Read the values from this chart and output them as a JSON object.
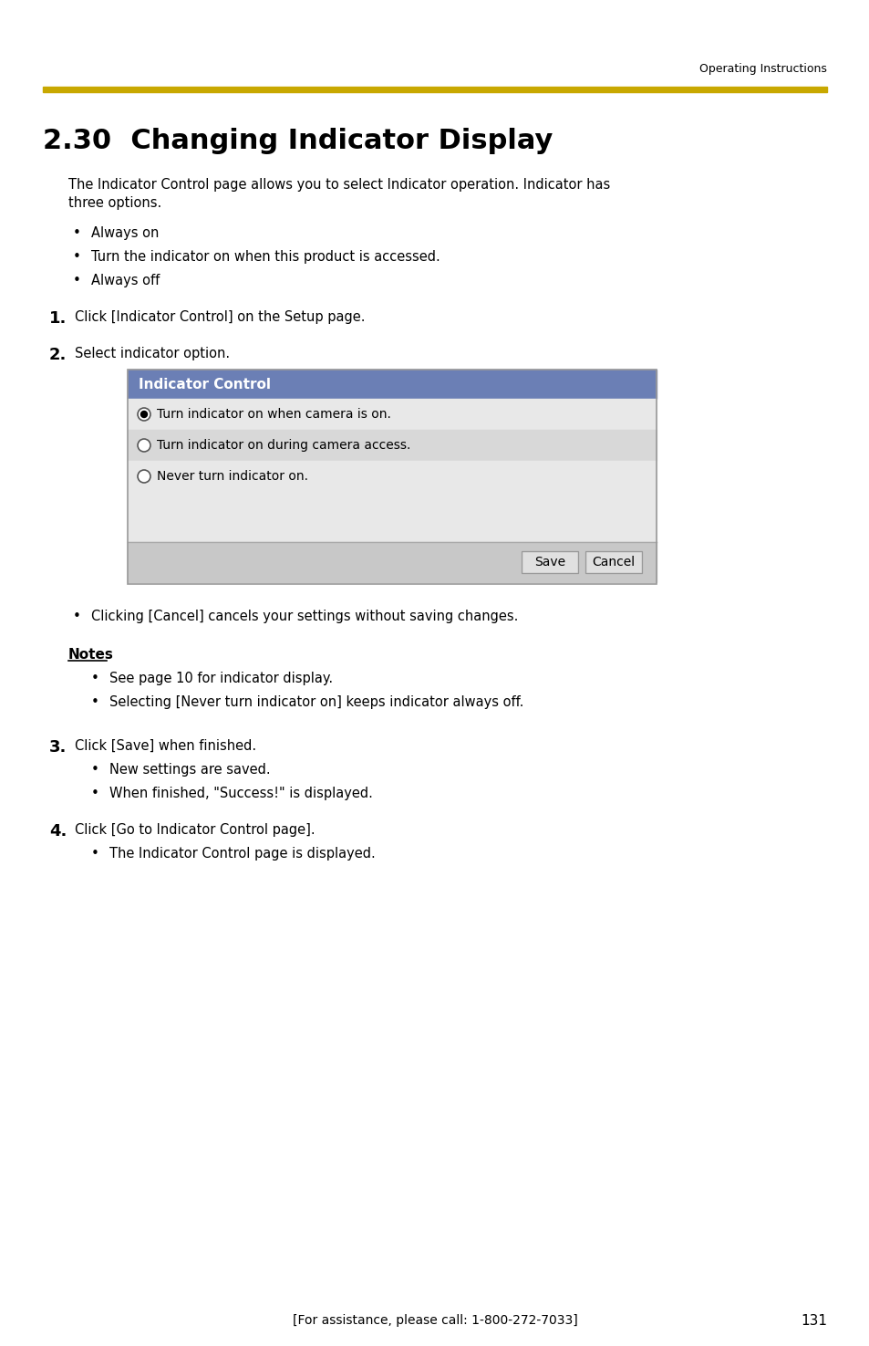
{
  "page_bg": "#ffffff",
  "header_line_color": "#C8A800",
  "header_text": "Operating Instructions",
  "header_text_color": "#000000",
  "title": "2.30  Changing Indicator Display",
  "title_color": "#000000",
  "body_text_color": "#000000",
  "intro_text": "The Indicator Control page allows you to select Indicator operation. Indicator has\nthree options.",
  "bullets": [
    "Always on",
    "Turn the indicator on when this product is accessed.",
    "Always off"
  ],
  "steps": [
    {
      "num": "1.",
      "text": "Click [Indicator Control] on the Setup page."
    },
    {
      "num": "2.",
      "text": "Select indicator option."
    }
  ],
  "ui_box": {
    "header_text": "Indicator Control",
    "header_bg": "#6B7FB5",
    "header_text_color": "#ffffff",
    "row_bg_1": "#E8E8E8",
    "row_bg_2": "#D8D8D8",
    "border_color": "#999999",
    "options": [
      "Turn indicator on when camera is on.",
      "Turn indicator on during camera access.",
      "Never turn indicator on."
    ],
    "selected_index": 0,
    "button_area_bg": "#CCCCCC",
    "buttons": [
      "Save",
      "Cancel"
    ]
  },
  "after_step2_bullet": "Clicking [Cancel] cancels your settings without saving changes.",
  "notes_title": "Notes",
  "notes_bullets": [
    "See page 10 for indicator display.",
    "Selecting [Never turn indicator on] keeps indicator always off."
  ],
  "steps_after": [
    {
      "num": "3.",
      "text": "Click [Save] when finished.",
      "sub_bullets": [
        "New settings are saved.",
        "When finished, \"Success!\" is displayed."
      ]
    },
    {
      "num": "4.",
      "text": "Click [Go to Indicator Control page].",
      "sub_bullets": [
        "The Indicator Control page is displayed."
      ]
    }
  ],
  "footer_text": "[For assistance, please call: 1-800-272-7033]",
  "page_number": "131"
}
